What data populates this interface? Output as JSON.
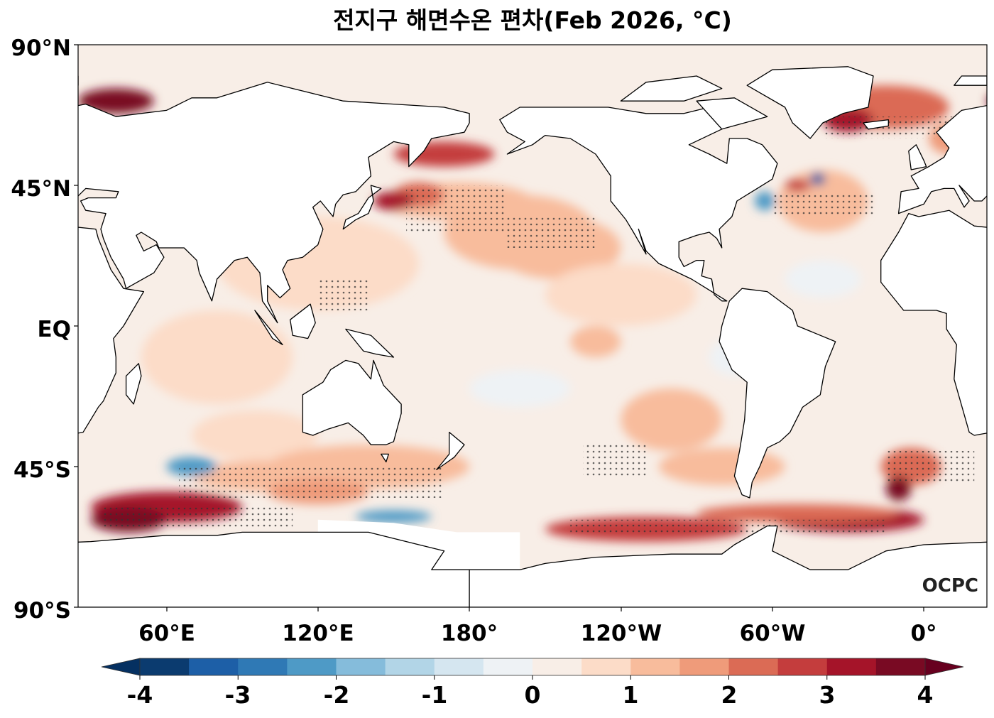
{
  "title": "전지구 해면수온 편차(Feb 2026, °C)",
  "map": {
    "projection": "equirectangular",
    "central_longitude": "205°E",
    "lat_ticks": [
      "90°N",
      "45°N",
      "EQ",
      "45°S",
      "90°S"
    ],
    "lon_ticks": [
      "60°E",
      "120°E",
      "180°",
      "120°W",
      "60°W",
      "0°"
    ],
    "land_color": "#ffffff",
    "coastline_color": "#000000",
    "stippling": "dots mark significant anomalies",
    "logo": "OCPC"
  },
  "colorbar": {
    "ticks": [
      "-4",
      "-3",
      "-2",
      "-1",
      "0",
      "1",
      "2",
      "3",
      "4"
    ],
    "min": -4,
    "max": 4,
    "step": 0.5,
    "extend": "both",
    "colors": [
      "#0b3b6f",
      "#1d5fa7",
      "#2f79b5",
      "#4e9ac6",
      "#85bcdb",
      "#b2d5e7",
      "#d5e6f0",
      "#eef2f5",
      "#f8eee7",
      "#fcdcc8",
      "#f8bc9c",
      "#ef9b7a",
      "#db6b55",
      "#c43d3d",
      "#a51429",
      "#790a23"
    ],
    "under_color": "#053061",
    "over_color": "#67001f"
  }
}
